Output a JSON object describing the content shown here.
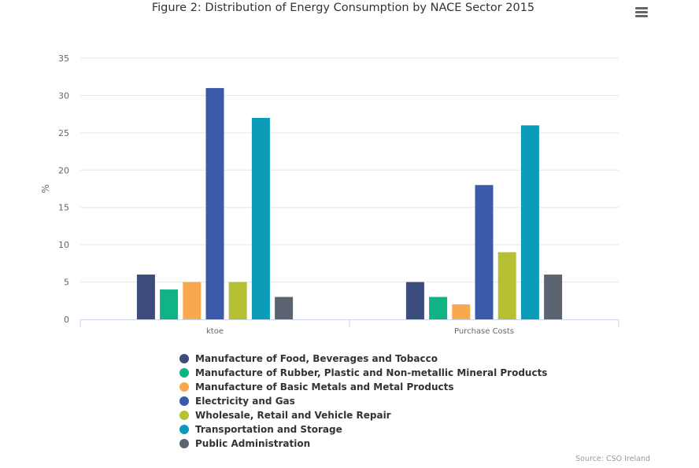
{
  "header": {
    "title": "Figure 2: Distribution of Energy Consumption by NACE Sector 2015",
    "menu_icon": "hamburger-menu-icon"
  },
  "credits": "Source: CSO Ireland",
  "colors": [
    "#3d4c7a",
    "#10b384",
    "#f8a94f",
    "#3b5aa8",
    "#b6c032",
    "#0a9bb8",
    "#5b6470"
  ],
  "chart_data": {
    "type": "bar",
    "title": "Figure 2: Distribution of Energy Consumption by NACE Sector 2015",
    "xlabel": "",
    "ylabel": "%",
    "ylim": [
      0,
      35
    ],
    "yticks": [
      0,
      5,
      10,
      15,
      20,
      25,
      30,
      35
    ],
    "grid": true,
    "legend_position": "bottom",
    "categories": [
      "ktoe",
      "Purchase Costs"
    ],
    "series": [
      {
        "name": "Manufacture of Food, Beverages and Tobacco",
        "values": [
          6,
          5
        ]
      },
      {
        "name": "Manufacture of Rubber, Plastic and Non-metallic Mineral Products",
        "values": [
          4,
          3
        ]
      },
      {
        "name": "Manufacture of Basic Metals and Metal Products",
        "values": [
          5,
          2
        ]
      },
      {
        "name": "Electricity and Gas",
        "values": [
          31,
          18
        ]
      },
      {
        "name": "Wholesale, Retail and Vehicle Repair",
        "values": [
          5,
          9
        ]
      },
      {
        "name": "Transportation and Storage",
        "values": [
          27,
          26
        ]
      },
      {
        "name": "Public Administration",
        "values": [
          3,
          6
        ]
      }
    ]
  }
}
